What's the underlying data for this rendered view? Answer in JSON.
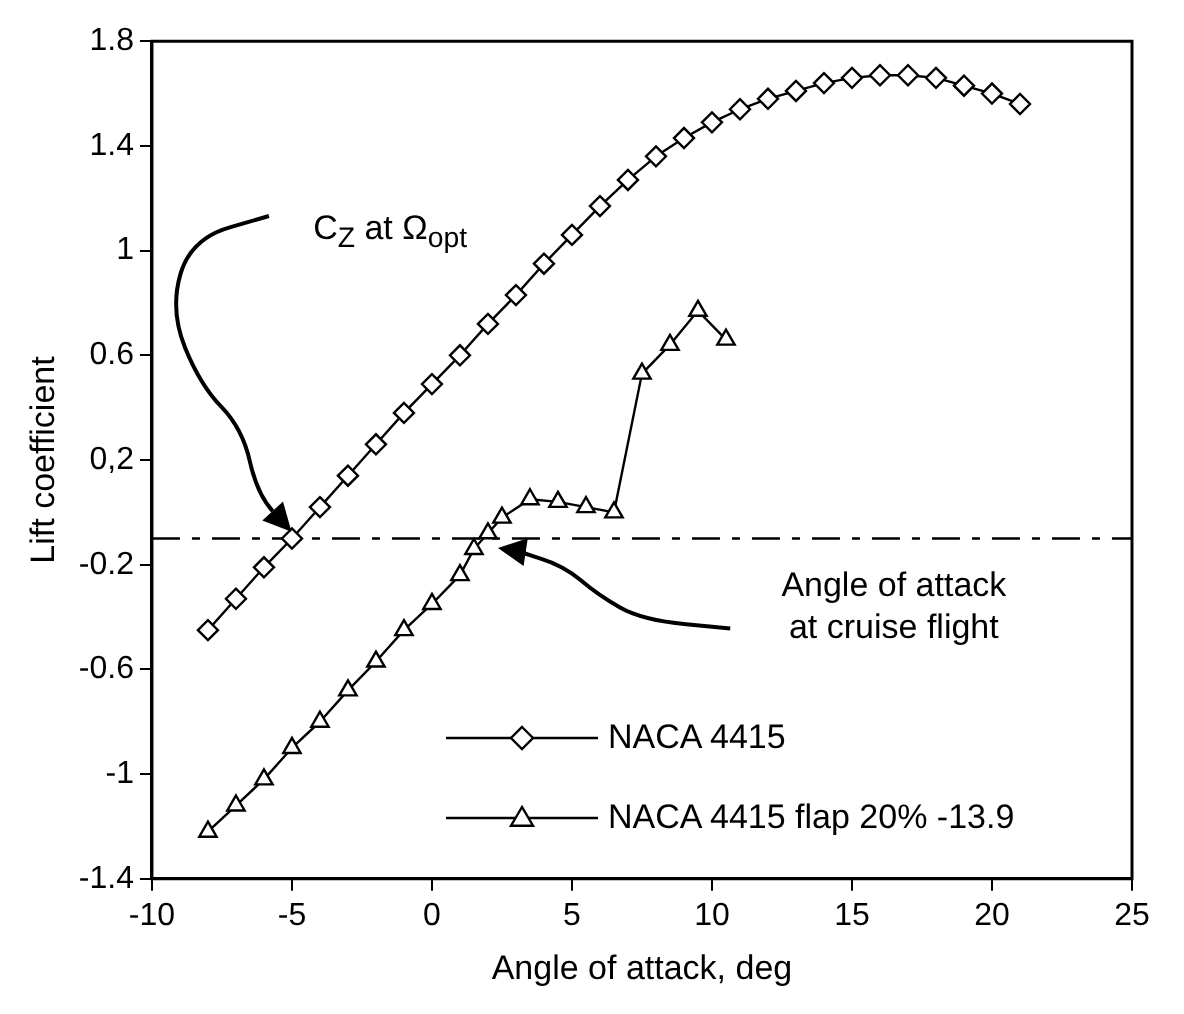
{
  "chart_data": {
    "type": "line",
    "xlabel": "Angle of attack, deg",
    "ylabel": "Lift coefficient",
    "xlim": [
      -10,
      25
    ],
    "xticks": [
      -10,
      -5,
      0,
      5,
      10,
      15,
      20,
      25
    ],
    "ylim": [
      -1.4,
      1.8
    ],
    "yticks": [
      -1.4,
      -1,
      -0.6,
      -0.2,
      {
        "value": 0.2,
        "label": "0,2"
      },
      0.6,
      1,
      1.4,
      1.8
    ],
    "grid": false,
    "legend": "bottom right",
    "line_style": "solid",
    "series": [
      {
        "name": "NACA 4415",
        "color": "#000000",
        "marker": "diamond",
        "x": [
          -8,
          -7,
          -6,
          -5,
          -4,
          -3,
          -2,
          -1,
          0,
          1,
          2,
          3,
          4,
          5,
          6,
          7,
          8,
          9,
          10,
          11,
          12,
          13,
          14,
          15,
          16,
          17,
          18,
          19,
          20,
          21
        ],
        "values": [
          -0.45,
          -0.33,
          -0.21,
          -0.1,
          0.02,
          0.14,
          0.26,
          0.38,
          0.49,
          0.6,
          0.72,
          0.83,
          0.95,
          1.06,
          1.17,
          1.27,
          1.36,
          1.43,
          1.49,
          1.54,
          1.58,
          1.61,
          1.64,
          1.66,
          1.67,
          1.67,
          1.66,
          1.63,
          1.6,
          1.56
        ]
      },
      {
        "name": "NACA 4415 flap 20% -13.9",
        "color": "#000000",
        "marker": "triangle",
        "x": [
          -8,
          -7,
          -6,
          -5,
          -4,
          -3,
          -2,
          -1,
          0,
          1,
          1.5,
          2,
          2.5,
          3.5,
          4.5,
          5.5,
          6.5,
          7.5,
          8.5,
          9.5,
          10.5
        ],
        "values": [
          -1.22,
          -1.12,
          -1.02,
          -0.9,
          -0.8,
          -0.68,
          -0.57,
          -0.45,
          -0.35,
          -0.24,
          -0.14,
          -0.08,
          -0.02,
          0.05,
          0.04,
          0.02,
          0.0,
          0.53,
          0.64,
          0.77,
          0.66
        ]
      }
    ],
    "ref_lines": [
      {
        "axis": "y",
        "value": -0.1,
        "color": "#000000",
        "line_style": "dashed"
      }
    ],
    "annotations": [
      "C$_{Z}$ at Ω$_{opt}$",
      "Angle of attack\nat cruise flight"
    ]
  }
}
